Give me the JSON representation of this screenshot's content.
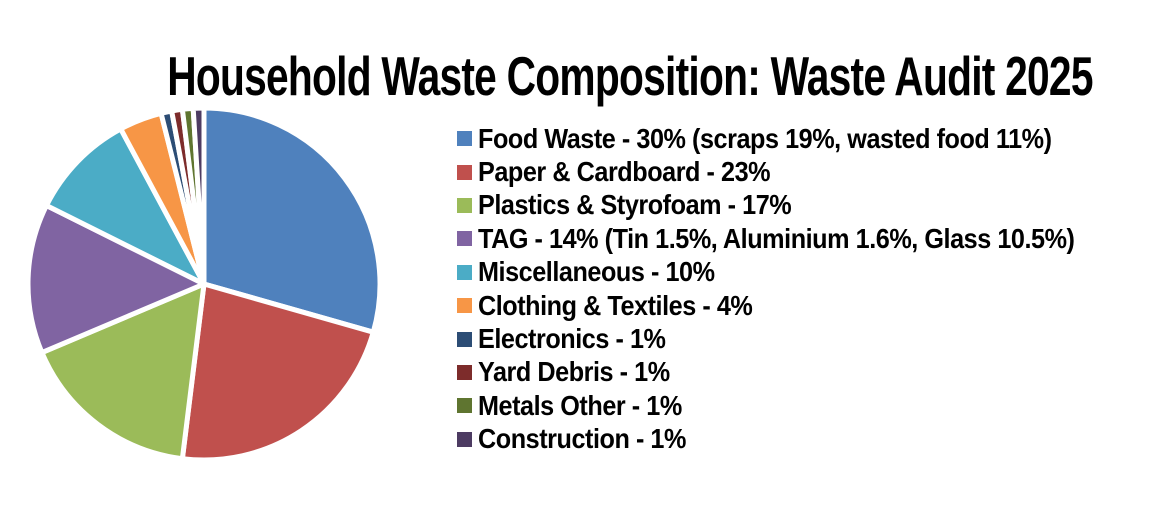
{
  "title": "Household Waste Composition: Waste Audit 2025",
  "chart_data": {
    "type": "pie",
    "title": "Household Waste Composition: Waste Audit 2025",
    "start_angle_deg": 0,
    "direction": "clockwise",
    "legend_position": "right",
    "background_color": "#ffffff",
    "slice_gap_color": "#ffffff",
    "slices": [
      {
        "label": "Food Waste",
        "value": 30,
        "legend_label": "Food Waste - 30% (scraps 19%, wasted food 11%)",
        "color": "#4F81BD"
      },
      {
        "label": "Paper & Cardboard",
        "value": 23,
        "legend_label": "Paper & Cardboard - 23%",
        "color": "#C0504D"
      },
      {
        "label": "Plastics & Styrofoam",
        "value": 17,
        "legend_label": "Plastics & Styrofoam - 17%",
        "color": "#9BBB59"
      },
      {
        "label": "TAG",
        "value": 14,
        "legend_label": "TAG - 14% (Tin 1.5%, Aluminium 1.6%, Glass 10.5%)",
        "color": "#8064A2"
      },
      {
        "label": "Miscellaneous",
        "value": 10,
        "legend_label": "Miscellaneous - 10%",
        "color": "#4BACC6"
      },
      {
        "label": "Clothing & Textiles",
        "value": 4,
        "legend_label": "Clothing & Textiles - 4%",
        "color": "#F79646"
      },
      {
        "label": "Electronics",
        "value": 1,
        "legend_label": "Electronics - 1%",
        "color": "#2C4D75"
      },
      {
        "label": "Yard Debris",
        "value": 1,
        "legend_label": "Yard Debris - 1%",
        "color": "#7D2C2B"
      },
      {
        "label": "Metals Other",
        "value": 1,
        "legend_label": "Metals Other - 1%",
        "color": "#5F7530"
      },
      {
        "label": "Construction",
        "value": 1,
        "legend_label": "Construction - 1%",
        "color": "#4D3B62"
      }
    ]
  }
}
